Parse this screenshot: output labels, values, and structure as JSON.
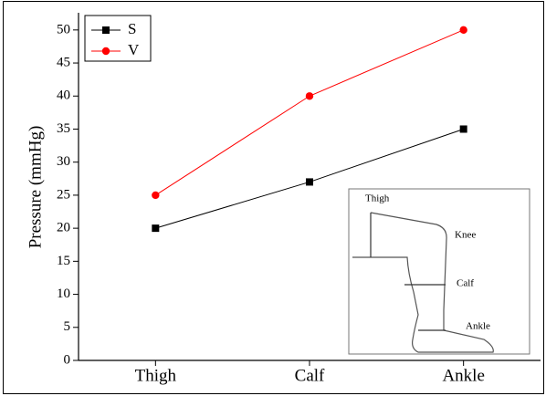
{
  "chart_data": {
    "type": "line",
    "categories": [
      "Thigh",
      "Calf",
      "Ankle"
    ],
    "y_label": "Pressure (mmHg)",
    "series": [
      {
        "name": "S",
        "color": "#000000",
        "marker": "square",
        "values": [
          20,
          27,
          35
        ]
      },
      {
        "name": "V",
        "color": "#ff0000",
        "marker": "circle",
        "values": [
          25,
          40,
          50
        ]
      }
    ],
    "ylim": [
      0,
      52.6
    ],
    "yticks": [
      0,
      5,
      10,
      15,
      20,
      25,
      30,
      35,
      40,
      45,
      50
    ],
    "grid": false,
    "legend": "top-left",
    "annotations": [
      "Thigh",
      "Knee",
      "Calf",
      "Ankle"
    ]
  }
}
